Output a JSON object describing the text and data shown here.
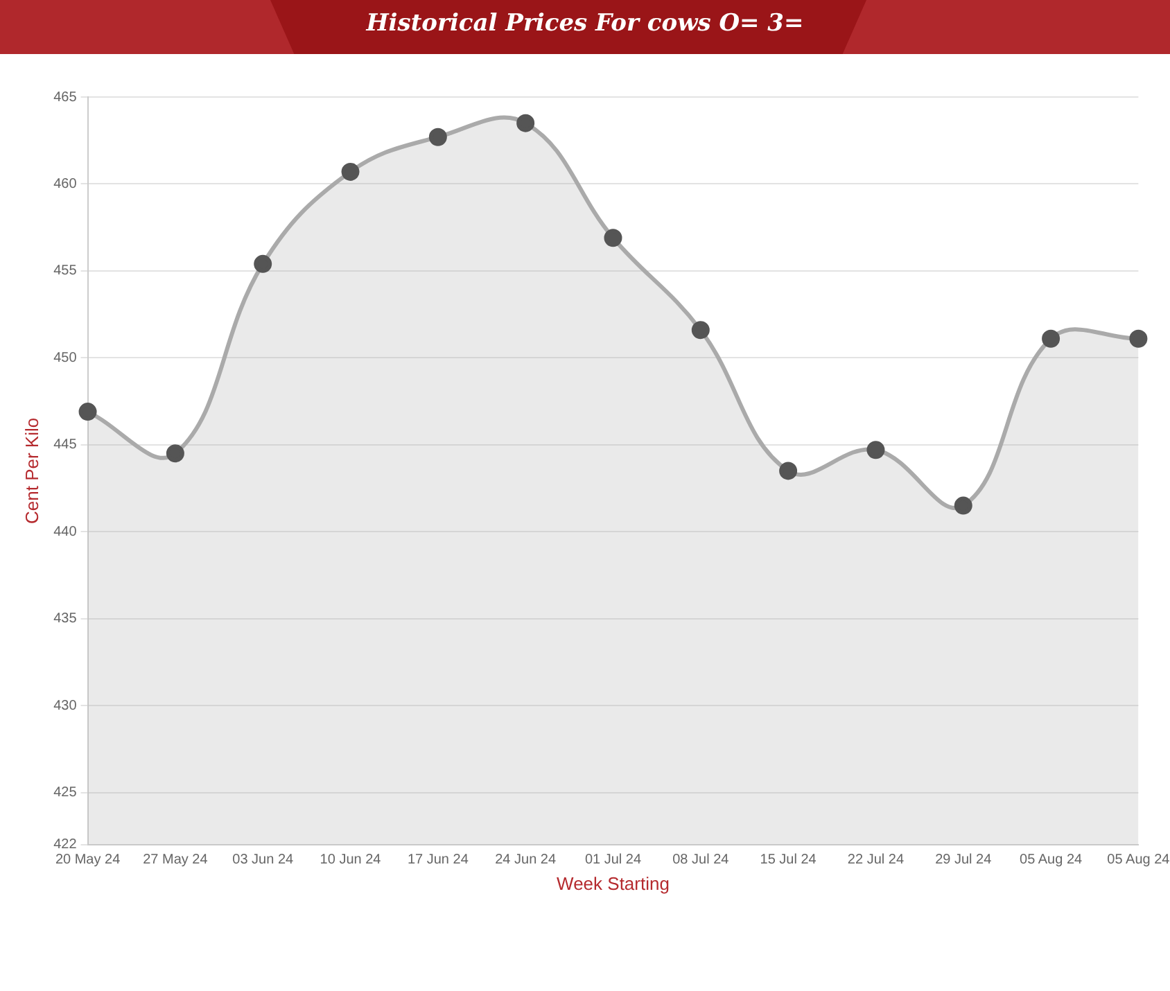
{
  "chart_data": {
    "type": "area",
    "title": "Historical Prices For cows O= 3=",
    "xlabel": "Week Starting",
    "ylabel": "Cent Per Kilo",
    "categories": [
      "20 May 24",
      "27 May 24",
      "03 Jun 24",
      "10 Jun 24",
      "17 Jun 24",
      "24 Jun 24",
      "01 Jul 24",
      "08 Jul 24",
      "15 Jul 24",
      "22 Jul 24",
      "29 Jul 24",
      "05 Aug 24",
      "05 Aug 24"
    ],
    "series": [
      {
        "color": "#aaaaaa",
        "values": [
          446.9,
          444.5,
          455.4,
          460.7,
          462.7,
          463.5,
          456.9,
          451.6,
          443.5,
          444.7,
          441.5,
          451.1,
          451.1
        ]
      }
    ],
    "ylim": [
      422,
      465
    ],
    "yticks": [
      422,
      425,
      430,
      435,
      440,
      445,
      450,
      455,
      460,
      465
    ],
    "grid": "y",
    "legend": false,
    "marker": "circle",
    "line_style": "solid"
  }
}
